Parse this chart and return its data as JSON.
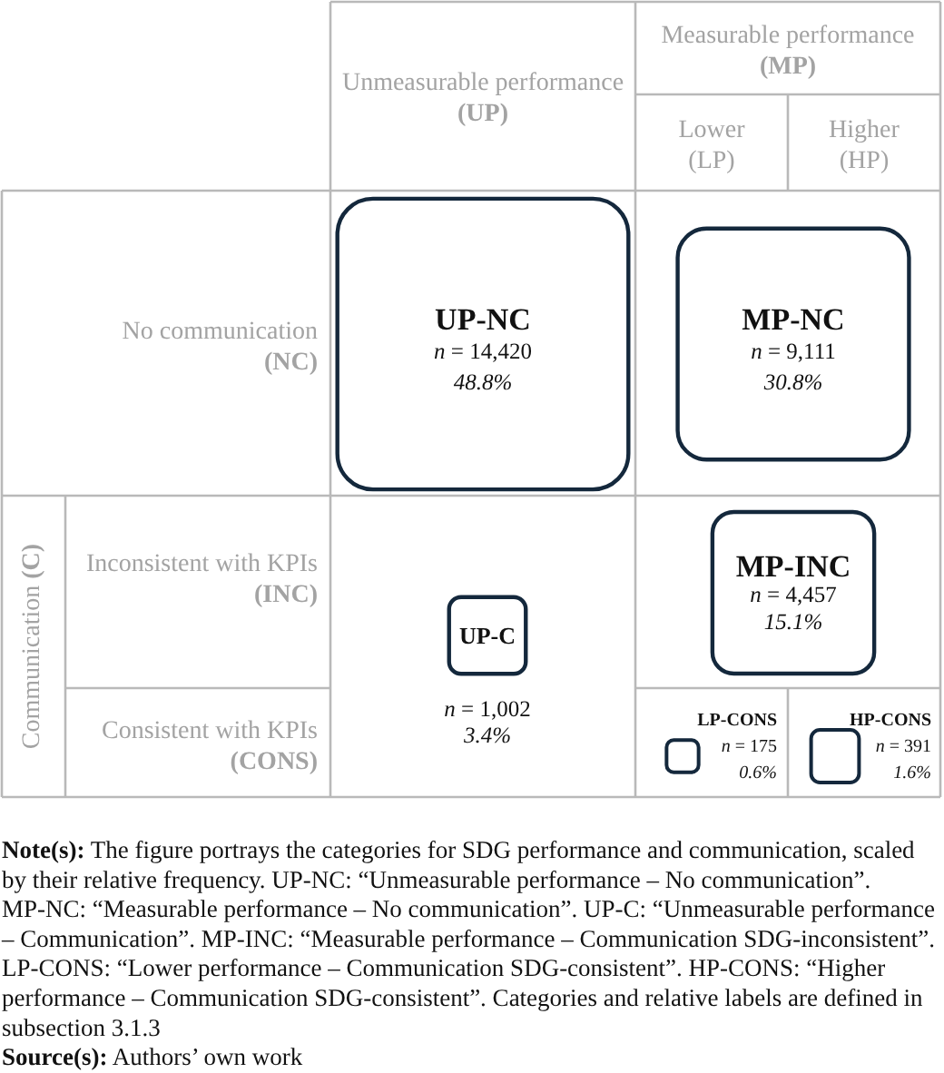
{
  "chart_data": {
    "type": "other",
    "categories": [
      "UP-NC",
      "MP-NC",
      "MP-INC",
      "UP-C",
      "LP-CONS",
      "HP-CONS"
    ],
    "series": [
      {
        "color": "#14283c",
        "values": [
          14420,
          9111,
          4457,
          1002,
          175,
          391
        ],
        "value_labels": [
          "n = 14,420",
          "n = 9,111",
          "n = 4,457",
          "n = 1,002",
          "n = 175",
          "n = 391"
        ]
      },
      {
        "values": [
          48.8,
          30.8,
          15.1,
          3.4,
          0.6,
          1.6
        ],
        "value_labels": [
          "48.8%",
          "30.8%",
          "15.1%",
          "3.4%",
          "0.6%",
          "1.6%"
        ]
      }
    ],
    "annotations": [
      "Unmeasurable performance (UP)",
      "Measurable performance (MP)",
      "Lower (LP)",
      "Higher (HP)",
      "No communication (NC)",
      "Communication (C)",
      "Inconsistent with KPIs (INC)",
      "Consistent with KPIs (CONS)",
      "Note(s): The figure portrays the categories for SDG performance and communication, scaled by their relative frequency. UP-NC: “Unmeasurable performance – No communication”. MP-NC: “Measurable performance – No communication”. UP-C: “Unmeasurable performance – Communication”. MP-INC: “Measurable performance – Communication SDG-inconsistent”. LP-CONS: “Lower performance – Communication SDG-consistent”. HP-CONS: “Higher performance – Communication SDG-consistent”. Categories and relative labels are defined in subsection 3.1.3",
      "Source(s): Authors’ own work"
    ]
  }
}
